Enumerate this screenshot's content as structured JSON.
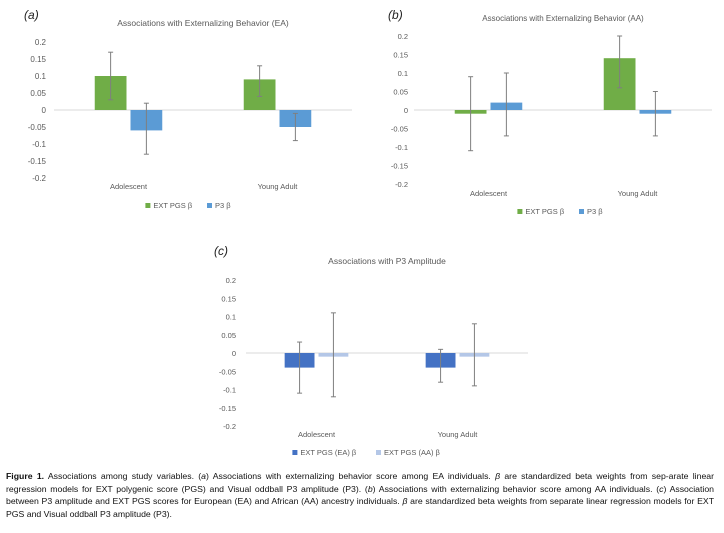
{
  "colors": {
    "ext_pgs": "#70AD47",
    "p3": "#5B9BD5",
    "ext_pgs_ea": "#4472C4",
    "ext_pgs_aa": "#B4C7E7",
    "error_bar": "#7F7F7F",
    "tick_text": "#595959"
  },
  "chart_data": [
    {
      "id": "a",
      "panel_label": "a",
      "type": "bar",
      "title": "Associations with Externalizing Behavior (EA)",
      "categories": [
        "Adolescent",
        "Young Adult"
      ],
      "series": [
        {
          "name": "EXT PGS β",
          "color_key": "ext_pgs",
          "values": [
            0.1,
            0.09
          ],
          "err_low": [
            0.03,
            0.04
          ],
          "err_high": [
            0.17,
            0.13
          ]
        },
        {
          "name": "P3 β",
          "color_key": "p3",
          "values": [
            -0.06,
            -0.05
          ],
          "err_low": [
            -0.13,
            -0.09
          ],
          "err_high": [
            0.02,
            -0.01
          ]
        }
      ],
      "yticks": [
        "0.2",
        "0.15",
        "0.1",
        "0.05",
        "0",
        "-0.05",
        "-0.1",
        "-0.15",
        "-0.2"
      ],
      "ylim": [
        -0.2,
        0.2
      ],
      "legend_position": "bottom-center",
      "grid": false
    },
    {
      "id": "b",
      "panel_label": "b",
      "type": "bar",
      "title": "Associations with Externalizing Behavior (AA)",
      "categories": [
        "Adolescent",
        "Young Adult"
      ],
      "series": [
        {
          "name": "EXT PGS β",
          "color_key": "ext_pgs",
          "values": [
            -0.01,
            0.14
          ],
          "err_low": [
            -0.11,
            0.06
          ],
          "err_high": [
            0.09,
            0.2
          ]
        },
        {
          "name": "P3 β",
          "color_key": "p3",
          "values": [
            0.02,
            -0.01
          ],
          "err_low": [
            -0.07,
            -0.07
          ],
          "err_high": [
            0.1,
            0.05
          ]
        }
      ],
      "yticks": [
        "0.2",
        "0.15",
        "0.1",
        "0.05",
        "0",
        "-0.05",
        "-0.1",
        "-0.15",
        "-0.2"
      ],
      "ylim": [
        -0.2,
        0.2
      ],
      "legend_position": "bottom-center",
      "grid": false
    },
    {
      "id": "c",
      "panel_label": "c",
      "type": "bar",
      "title": "Associations with P3 Amplitude",
      "categories": [
        "Adolescent",
        "Young Adult"
      ],
      "series": [
        {
          "name": "EXT PGS (EA) β",
          "color_key": "ext_pgs_ea",
          "values": [
            -0.04,
            -0.04
          ],
          "err_low": [
            -0.11,
            -0.08
          ],
          "err_high": [
            0.03,
            0.01
          ]
        },
        {
          "name": "EXT PGS (AA) β",
          "color_key": "ext_pgs_aa",
          "values": [
            -0.01,
            -0.01
          ],
          "err_low": [
            -0.12,
            -0.09
          ],
          "err_high": [
            0.11,
            0.08
          ]
        }
      ],
      "yticks": [
        "0.2",
        "0.15",
        "0.1",
        "0.05",
        "0",
        "-0.05",
        "-0.1",
        "-0.15",
        "-0.2"
      ],
      "ylim": [
        -0.2,
        0.2
      ],
      "legend_position": "bottom-center",
      "grid": false
    }
  ],
  "caption": {
    "figure_label": "Figure 1.",
    "s1": " Associations among study variables. (",
    "s1_i": "a",
    "s2": ") Associations with externalizing behavior score among EA individuals. ",
    "s2_i": "β",
    "s3": " are standardized beta weights from sep-arate linear regression models for EXT polygenic score (PGS) and Visual oddball P3 amplitude (P3). (",
    "s3_i": "b",
    "s4": ") Associations with externalizing behavior score among AA individuals. (",
    "s4_i": "c",
    "s5": ") Association between P3 amplitude and EXT PGS scores for European (EA) and African (AA) ancestry individuals. ",
    "s5_i": "β",
    "s6": " are standardized beta weights from separate linear regression models for EXT PGS and Visual oddball P3 amplitude (P3)."
  }
}
